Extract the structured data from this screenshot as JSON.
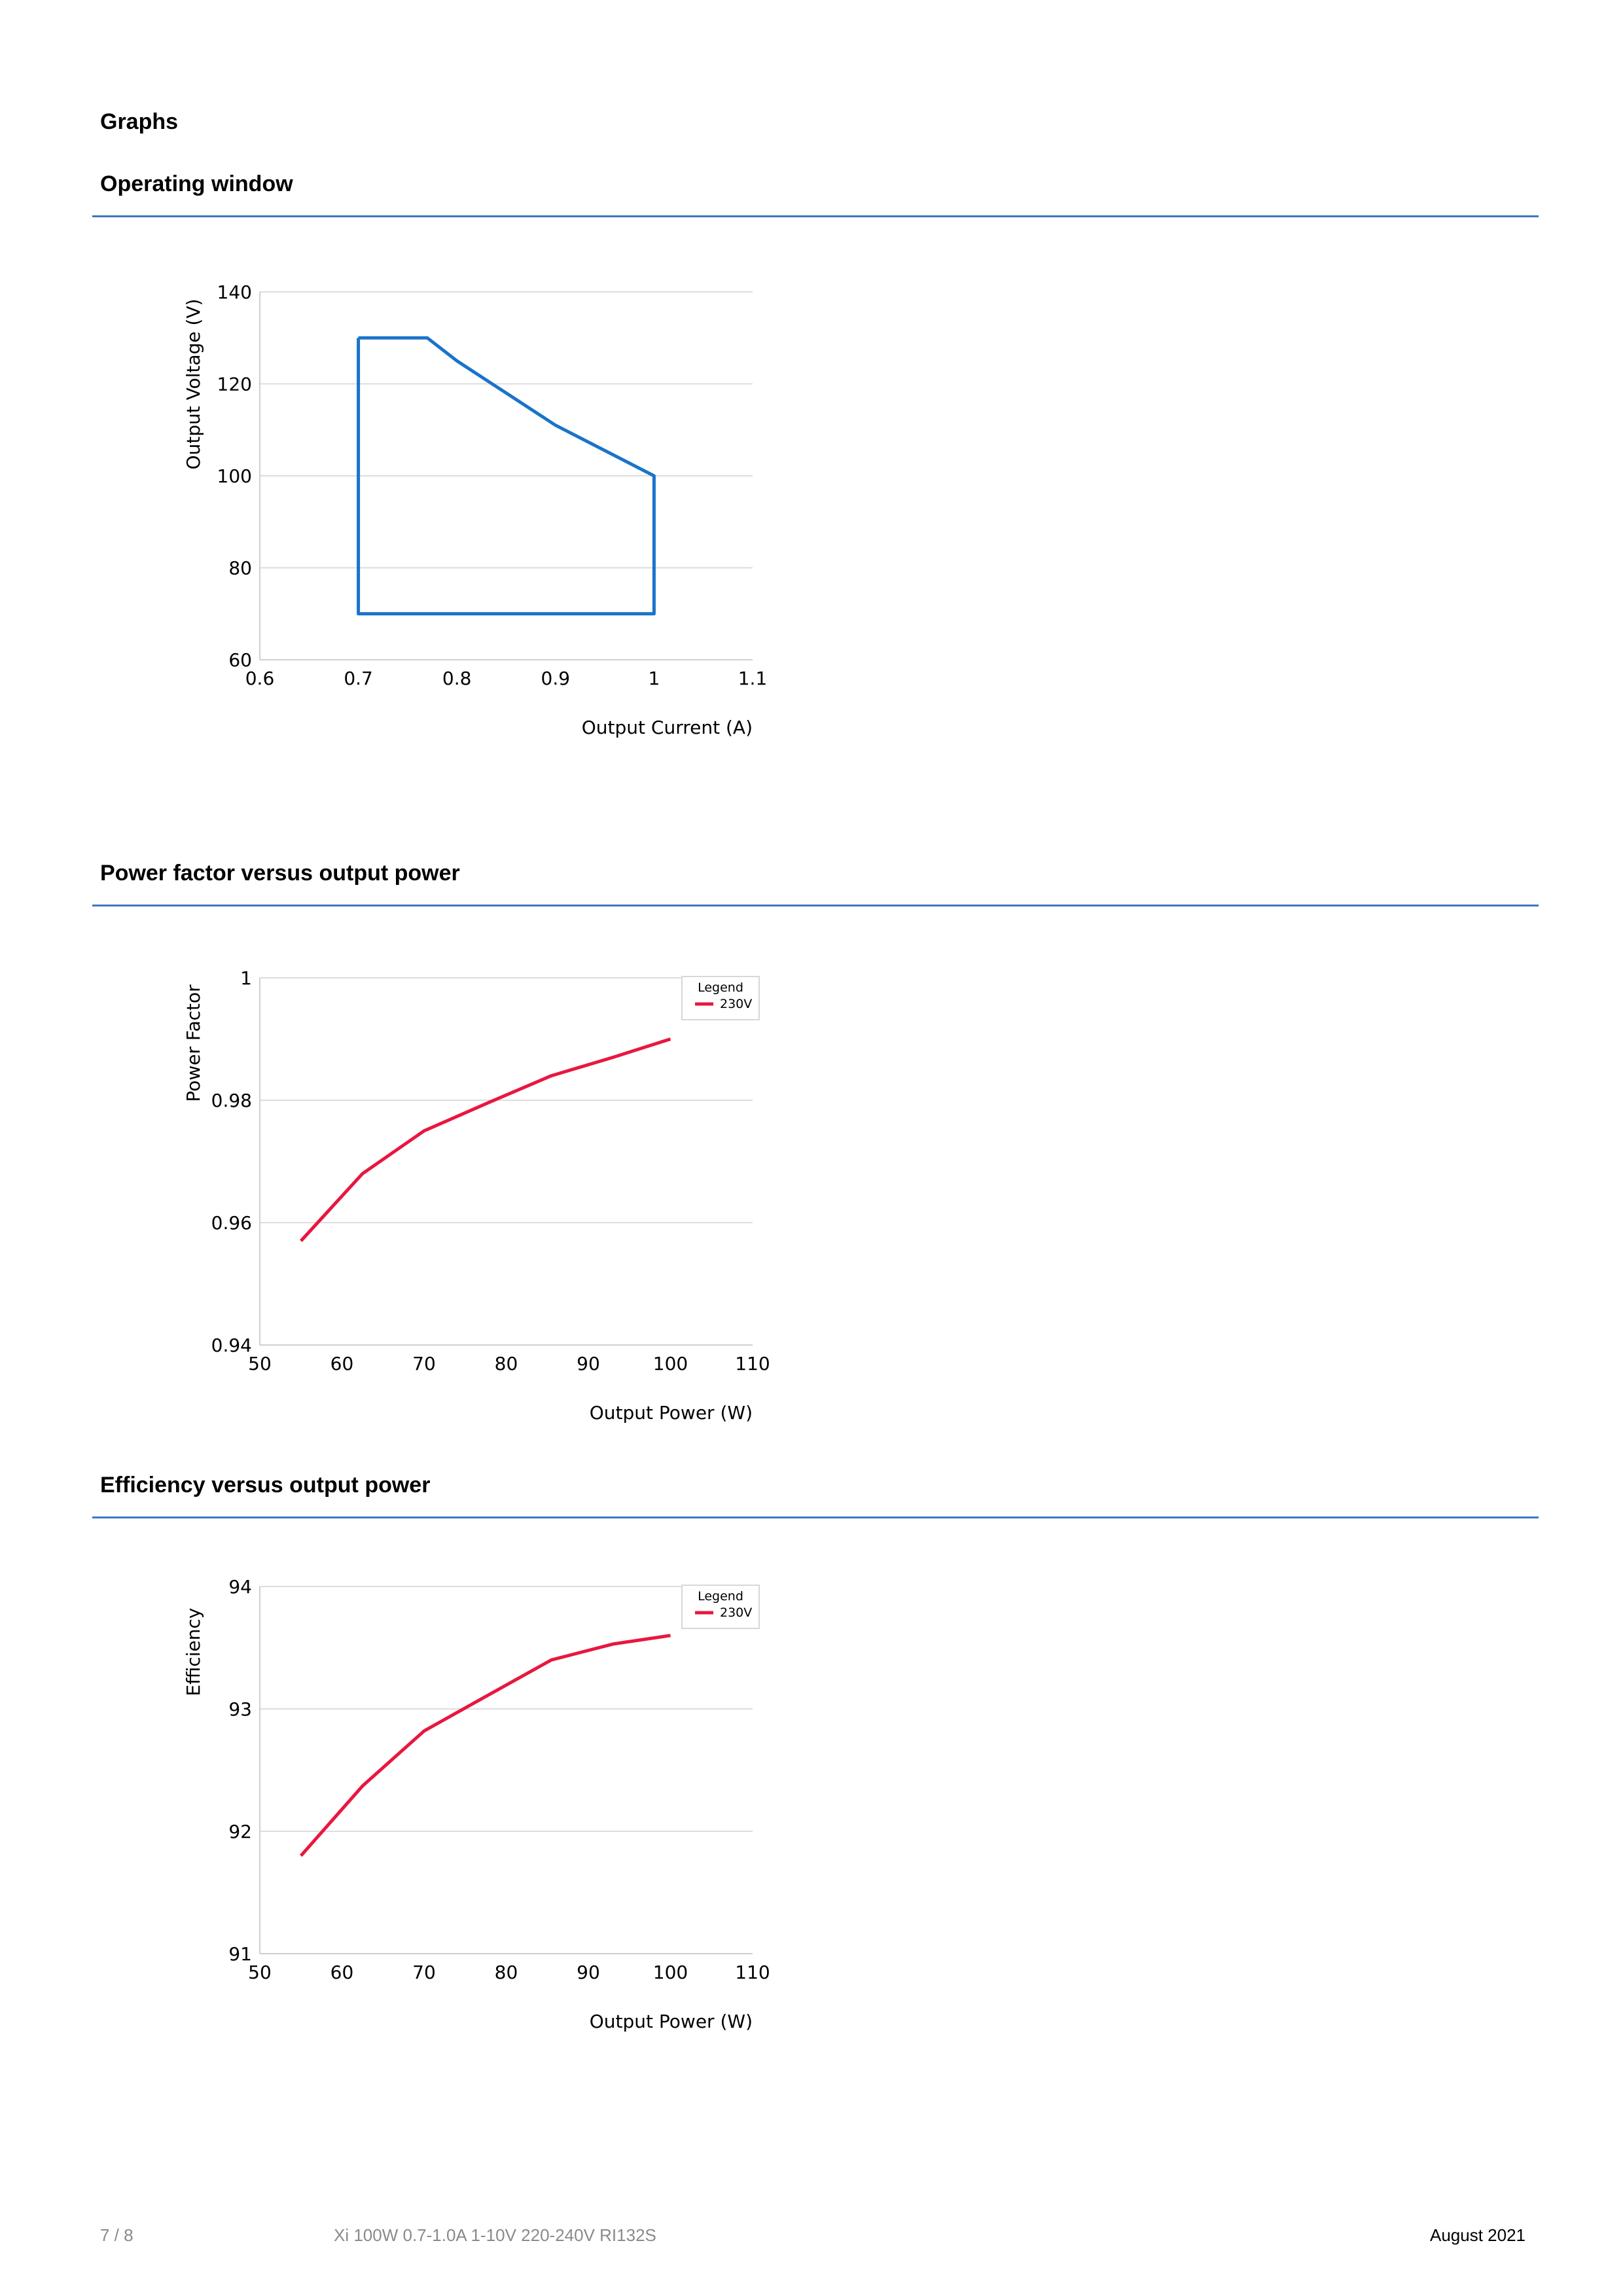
{
  "page": {
    "heading": "Graphs",
    "sections": [
      {
        "title": "Operating window"
      },
      {
        "title": "Power factor versus output power"
      },
      {
        "title": "Efficiency versus output power"
      }
    ]
  },
  "footer": {
    "page_number": "7 / 8",
    "product": "Xi 100W 0.7-1.0A 1-10V 220-240V RI132S",
    "date": "August 2021"
  },
  "colors": {
    "rule": "#3c78c0",
    "operating_window": "#1a73c9",
    "series_230v": "#e8173f",
    "grid": "#dddddd",
    "axis_text": "#000000"
  },
  "chart_data": [
    {
      "type": "line",
      "title": "",
      "xlabel": "Output Current (A)",
      "ylabel": "Output Voltage (V)",
      "xlim": [
        0.6,
        1.1
      ],
      "ylim": [
        60,
        140
      ],
      "xticks": [
        "0.6",
        "0.7",
        "0.8",
        "0.9",
        "1",
        "1.1"
      ],
      "yticks": [
        "60",
        "80",
        "100",
        "120",
        "140"
      ],
      "grid": true,
      "legend": null,
      "series": [
        {
          "x": [
            0.7,
            0.77,
            0.8,
            0.9,
            1.0,
            1.0,
            0.7,
            0.7
          ],
          "y": [
            130,
            130,
            125,
            111,
            100,
            70,
            70,
            130
          ],
          "color": "#1a73c9"
        }
      ]
    },
    {
      "type": "line",
      "title": "",
      "xlabel": "Output Power (W)",
      "ylabel": "Power Factor",
      "xlim": [
        50,
        110
      ],
      "ylim": [
        0.94,
        1
      ],
      "xticks": [
        "50",
        "60",
        "70",
        "80",
        "90",
        "100",
        "110"
      ],
      "yticks": [
        "0.94",
        "0.96",
        "0.98",
        "1"
      ],
      "grid": true,
      "legend": {
        "title": "Legend",
        "position": "top-right"
      },
      "series": [
        {
          "name": "230V",
          "x": [
            55,
            62.5,
            70,
            78,
            85.5,
            93,
            100
          ],
          "y": [
            0.957,
            0.968,
            0.975,
            0.9797,
            0.984,
            0.987,
            0.99
          ],
          "color": "#e8173f"
        }
      ]
    },
    {
      "type": "line",
      "title": "",
      "xlabel": "Output Power (W)",
      "ylabel": "Efficiency",
      "xlim": [
        50,
        110
      ],
      "ylim": [
        91,
        94
      ],
      "xticks": [
        "50",
        "60",
        "70",
        "80",
        "90",
        "100",
        "110"
      ],
      "yticks": [
        "91",
        "92",
        "93",
        "94"
      ],
      "grid": true,
      "legend": {
        "title": "Legend",
        "position": "top-right"
      },
      "series": [
        {
          "name": "230V",
          "x": [
            55,
            62.5,
            70,
            78,
            85.5,
            93,
            100
          ],
          "y": [
            91.8,
            92.37,
            92.82,
            93.12,
            93.4,
            93.53,
            93.6
          ],
          "color": "#e8173f"
        }
      ]
    }
  ]
}
